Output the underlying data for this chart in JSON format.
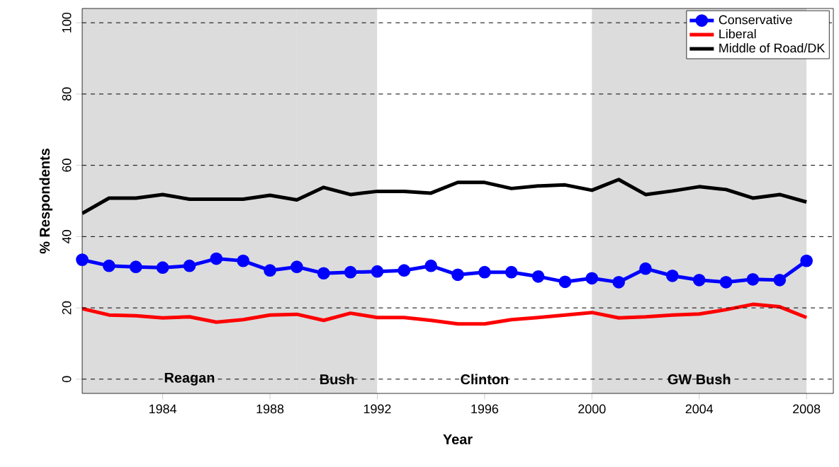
{
  "chart_data": {
    "type": "line",
    "xlabel": "Year",
    "ylabel": "% Respondents",
    "x": [
      1981,
      1982,
      1983,
      1984,
      1985,
      1986,
      1987,
      1988,
      1989,
      1990,
      1991,
      1992,
      1993,
      1994,
      1995,
      1996,
      1997,
      1998,
      1999,
      2000,
      2001,
      2002,
      2003,
      2004,
      2005,
      2006,
      2007,
      2008
    ],
    "series": [
      {
        "name": "Conservative",
        "color": "#0000ff",
        "marker": "circle",
        "values": [
          33.5,
          31.8,
          31.5,
          31.3,
          31.8,
          33.8,
          33.2,
          30.5,
          31.5,
          29.7,
          30,
          30.2,
          30.5,
          31.8,
          29.3,
          30,
          30,
          28.8,
          27.3,
          28.3,
          27.2,
          31,
          29,
          27.8,
          27.2,
          28,
          27.8,
          33.2
        ]
      },
      {
        "name": "Liberal",
        "color": "#ff0000",
        "values": [
          19.8,
          18,
          17.8,
          17.2,
          17.5,
          16,
          16.7,
          18,
          18.2,
          16.5,
          18.5,
          17.3,
          17.3,
          16.5,
          15.5,
          15.5,
          16.7,
          17.3,
          18,
          18.7,
          17.2,
          17.5,
          18,
          18.3,
          19.5,
          21,
          20.3,
          17.3
        ]
      },
      {
        "name": "Middle of Road/DK",
        "color": "#000000",
        "values": [
          46.5,
          50.8,
          50.8,
          51.8,
          50.5,
          50.5,
          50.5,
          51.6,
          50.3,
          53.8,
          51.8,
          52.7,
          52.7,
          52.2,
          55.2,
          55.2,
          53.5,
          54.2,
          54.5,
          53,
          56,
          51.8,
          52.8,
          54,
          53.2,
          50.8,
          51.8,
          49.7
        ]
      }
    ],
    "xlim": [
      1981,
      2009
    ],
    "ylim": [
      -4,
      104
    ],
    "xticks": [
      1984,
      1988,
      1992,
      1996,
      2000,
      2004,
      2008
    ],
    "yticks": [
      0,
      20,
      40,
      60,
      80,
      100
    ],
    "grid": "y",
    "line_style": "solid",
    "legend": "top right",
    "bands": [
      {
        "axis": "x",
        "from": 1981,
        "to": 1989,
        "color": "#dcdcdc",
        "label": "Reagan"
      },
      {
        "axis": "x",
        "from": 1989,
        "to": 1992,
        "color": "#dcdcdc",
        "label": "Bush"
      },
      {
        "axis": "x",
        "from": 1992,
        "to": 2000,
        "color": "#ffffff",
        "label": "Clinton"
      },
      {
        "axis": "x",
        "from": 2000,
        "to": 2008,
        "color": "#dcdcdc",
        "label": "GW Bush"
      }
    ]
  }
}
